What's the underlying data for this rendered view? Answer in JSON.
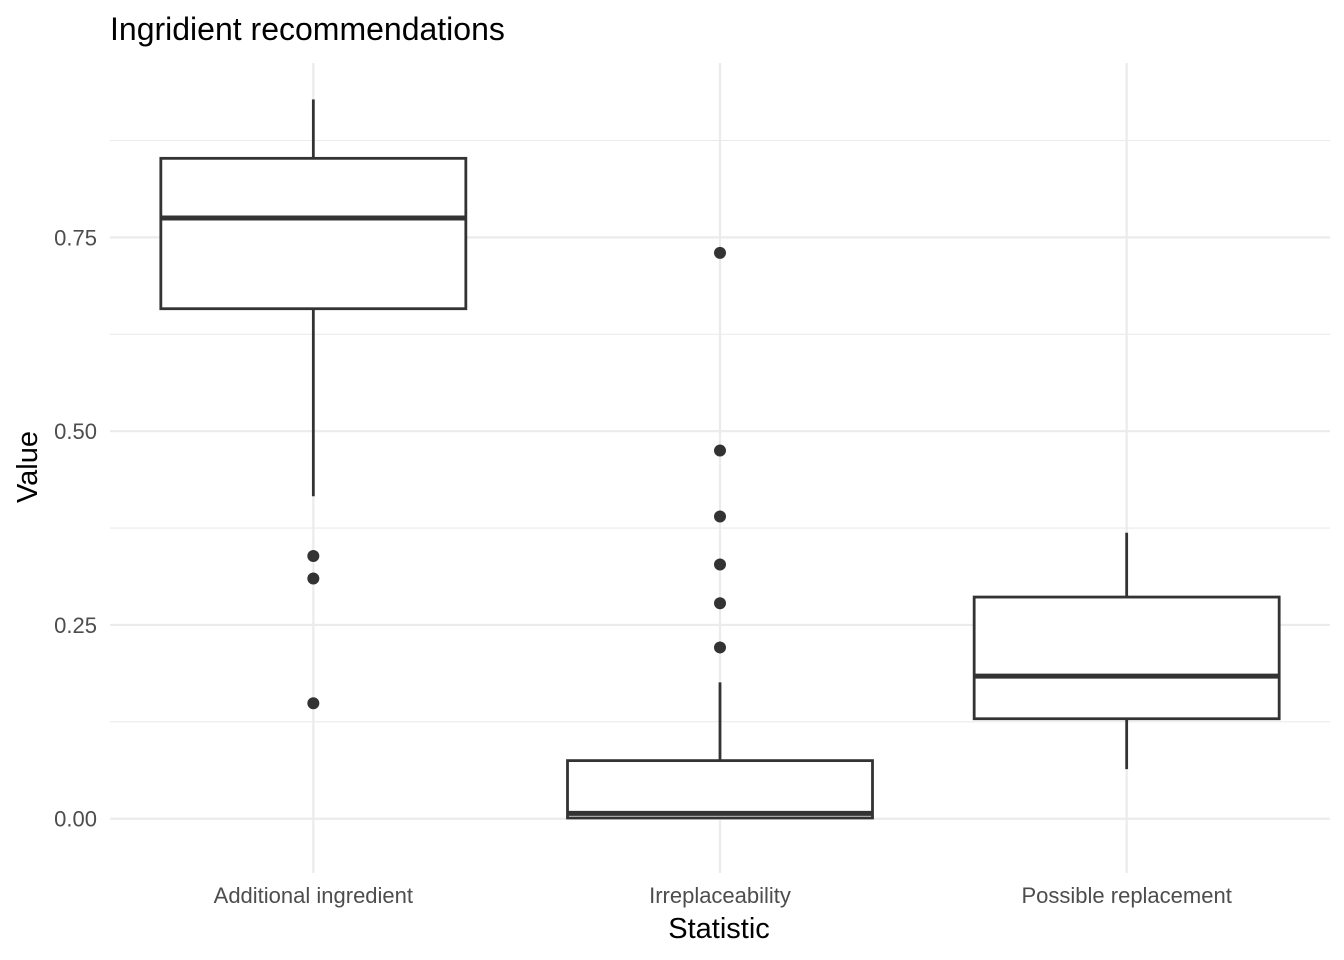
{
  "chart_data": {
    "type": "box",
    "title": "Ingridient recommendations",
    "xlabel": "Statistic",
    "ylabel": "Value",
    "ylim": [
      -0.07,
      0.975
    ],
    "y_ticks": [
      0.0,
      0.25,
      0.5,
      0.75
    ],
    "y_tick_labels": [
      "0.00",
      "0.25",
      "0.50",
      "0.75"
    ],
    "categories": [
      "Additional ingredient",
      "Irreplaceability",
      "Possible replacement"
    ],
    "boxes": [
      {
        "category": "Additional ingredient",
        "whisker_low": 0.416,
        "q1": 0.658,
        "median": 0.775,
        "q3": 0.852,
        "whisker_high": 0.928,
        "outliers": [
          0.339,
          0.31,
          0.149
        ]
      },
      {
        "category": "Irreplaceability",
        "whisker_low": 0.0,
        "q1": 0.001,
        "median": 0.007,
        "q3": 0.075,
        "whisker_high": 0.176,
        "outliers": [
          0.73,
          0.475,
          0.39,
          0.328,
          0.278,
          0.221
        ]
      },
      {
        "category": "Possible replacement",
        "whisker_low": 0.064,
        "q1": 0.129,
        "median": 0.184,
        "q3": 0.286,
        "whisker_high": 0.369,
        "outliers": []
      }
    ],
    "grid": true,
    "legend": "none",
    "colors": {
      "box_line": "#333333",
      "box_fill": "#ffffff",
      "grid": "#ebebeb",
      "tick_text": "#4d4d4d"
    }
  }
}
